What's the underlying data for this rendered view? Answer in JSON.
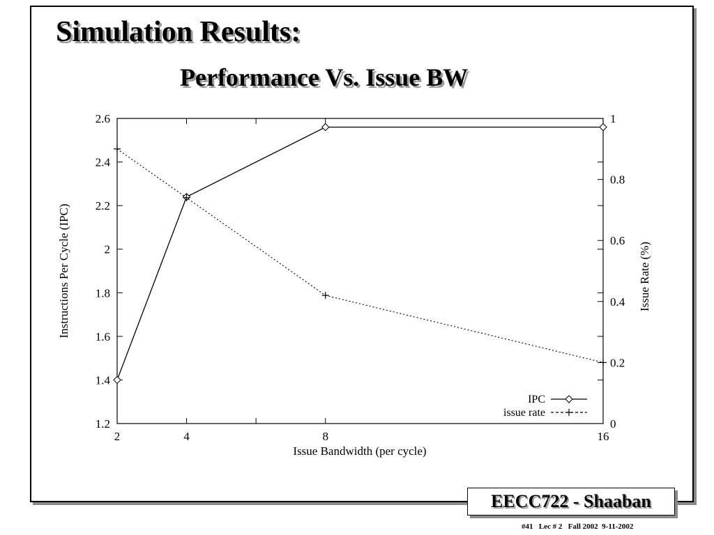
{
  "slide": {
    "title": "Simulation Results:",
    "subtitle": "Performance Vs. Issue BW",
    "course": "EECC722 - Shaaban",
    "footer": "#41   Lec # 2   Fall 2002  9-11-2002"
  },
  "chart_data": {
    "type": "line",
    "title": "",
    "xlabel": "Issue Bandwidth (per cycle)",
    "ylabel": "Instructions Per Cycle (IPC)",
    "y2label": "Issue Rate (%)",
    "xlim": [
      2,
      16
    ],
    "ylim": [
      1.2,
      2.6
    ],
    "y2lim": [
      0,
      1
    ],
    "x_ticks": [
      2,
      4,
      6,
      8,
      16
    ],
    "x_tick_labels": [
      "2",
      "4",
      "",
      "8",
      "16"
    ],
    "y_ticks": [
      1.2,
      1.4,
      1.6,
      1.8,
      2.0,
      2.2,
      2.4,
      2.6
    ],
    "y_tick_labels": [
      "1.2",
      "1.4",
      "1.6",
      "1.8",
      "2",
      "2.2",
      "2.4",
      "2.6"
    ],
    "y2_ticks": [
      0,
      0.2,
      0.4,
      0.6,
      0.8,
      1
    ],
    "y2_tick_labels": [
      "0",
      "0.2",
      "0.4",
      "0.6",
      "0.8",
      "1"
    ],
    "grid": false,
    "legend_position": "bottom-right",
    "series": [
      {
        "name": "IPC",
        "axis": "left",
        "style": "solid",
        "marker": "diamond",
        "x": [
          2,
          4,
          8,
          16
        ],
        "y": [
          1.4,
          2.24,
          2.56,
          2.56
        ]
      },
      {
        "name": "issue rate",
        "axis": "right",
        "style": "dotted",
        "marker": "plus",
        "x": [
          2,
          4,
          8,
          16
        ],
        "y": [
          0.9,
          0.74,
          0.42,
          0.2
        ]
      }
    ]
  }
}
